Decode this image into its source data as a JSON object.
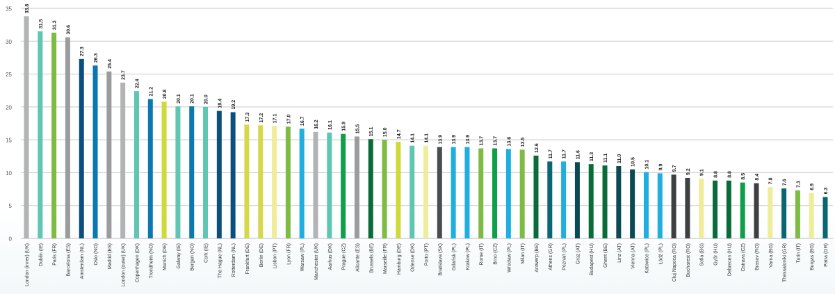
{
  "chart_data": {
    "type": "bar",
    "title": "",
    "xlabel": "",
    "ylabel": "",
    "ylim": [
      0,
      35
    ],
    "yticks": [
      0,
      5,
      10,
      15,
      20,
      25,
      30,
      35
    ],
    "grid": true,
    "legend": null,
    "categories": [
      "London (inner) (UK)",
      "Dublin (IE)",
      "Paris (FR)",
      "Barcelona (ES)",
      "Amsterdam (NL)",
      "Oslo (NO)",
      "Madrid (ES)",
      "London (outer) (UK)",
      "Copenhagen (DK)",
      "Trondheim (NO)",
      "Munich (DE)",
      "Galway (IE)",
      "Bergen (NO)",
      "Cork (IE)",
      "The Hague (NL)",
      "Rotterdam (NL)",
      "Frankfurt (DE)",
      "Berlin (DE)",
      "Lisbon (PT)",
      "Lyon (FR)",
      "Warsaw (PL)",
      "Manchester (UK)",
      "Aarhus (DK)",
      "Prague (CZ)",
      "Alicante (ES)",
      "Brussels (BE)",
      "Marseille (FR)",
      "Hamburg (DE)",
      "Odense (DK)",
      "Porto (PT)",
      "Bratislava (SK)",
      "Gdańsk (PL)",
      "Krakow (PL)",
      "Rome (IT)",
      "Brno (CZ)",
      "Wrocław (PL)",
      "Milan (IT)",
      "Antwerp (BE)",
      "Athens (GR)",
      "Poznań (PL)",
      "Graz (AT)",
      "Budapest (HU)",
      "Ghent (BE)",
      "Linz (AT)",
      "Vienna (AT)",
      "Katowice (PL)",
      "Łódź (PL)",
      "Cluj Napoca (RO)",
      "Bucharest (RO)",
      "Sofia (BG)",
      "Győr (HU)",
      "Debrecen (HU)",
      "Ostrava (CZ)",
      "Brasov (RO)",
      "Varna (BG)",
      "Thessaloniki (GR)",
      "Turin (IT)",
      "Burgas (BG)",
      "Patra (GR)"
    ],
    "values": [
      33.8,
      31.5,
      31.3,
      30.6,
      27.3,
      26.3,
      25.4,
      23.7,
      22.4,
      21.2,
      20.8,
      20.1,
      20.1,
      20.0,
      19.4,
      19.2,
      17.3,
      17.2,
      17.1,
      17.0,
      16.7,
      16.2,
      16.1,
      15.9,
      15.5,
      15.1,
      15.0,
      14.7,
      14.1,
      14.1,
      13.9,
      13.9,
      13.9,
      13.7,
      13.7,
      13.6,
      13.5,
      12.6,
      11.7,
      11.7,
      11.6,
      11.3,
      11.1,
      11.0,
      10.5,
      10.1,
      9.9,
      9.7,
      9.2,
      9.1,
      8.8,
      8.8,
      8.5,
      8.4,
      7.8,
      7.6,
      7.3,
      6.9,
      6.3
    ],
    "value_labels": [
      "33.8",
      "31.5",
      "31.3",
      "30.6",
      "27.3",
      "26.3",
      "25.4",
      "23.7",
      "22.4",
      "21.2",
      "20.8",
      "20.1",
      "20.1",
      "20.0",
      "19.4",
      "19.2",
      "17.3",
      "17.2",
      "17.1",
      "17.0",
      "16.7",
      "16.2",
      "16.1",
      "15.9",
      "15.5",
      "15.1",
      "15.0",
      "14.7",
      "14.1",
      "14.1",
      "13.9",
      "13.9",
      "13.9",
      "13.7",
      "13.7",
      "13.6",
      "13.5",
      "12.6",
      "11.7",
      "11.7",
      "11.6",
      "11.3",
      "11.1",
      "11.0",
      "10.5",
      "10.1",
      "9.9",
      "9.7",
      "9.2",
      "9.1",
      "8.8",
      "8.8",
      "8.5",
      "8.4",
      "7.8",
      "7.6",
      "7.3",
      "6.9",
      "6.3"
    ],
    "colors": [
      "#b1b3b4",
      "#5ec6b2",
      "#7dbb42",
      "#9a9c9e",
      "#0b4f7c",
      "#0b78b0",
      "#9a9c9e",
      "#b1b3b4",
      "#5ec6b2",
      "#0b78b0",
      "#cfd93a",
      "#5ec6b2",
      "#0b78b0",
      "#5ec6b2",
      "#0b4f7c",
      "#0b4f7c",
      "#d5d84a",
      "#d5d84a",
      "#efec9a",
      "#7dbb42",
      "#1eaee0",
      "#b1b3b4",
      "#5ec6b2",
      "#0e9f4a",
      "#9a9c9e",
      "#0a6b3a",
      "#7dbb42",
      "#cfd93a",
      "#5ec6b2",
      "#efec9a",
      "#4a4d4f",
      "#1eaee0",
      "#1eaee0",
      "#7dbb42",
      "#0e9f4a",
      "#1eaee0",
      "#7dbb42",
      "#0a6b3a",
      "#0a6670",
      "#1eaee0",
      "#0b4a52",
      "#0a6b3a",
      "#0a6b3a",
      "#0b4a52",
      "#0b4a52",
      "#1eaee0",
      "#1eaee0",
      "#3d3f41",
      "#3d3f41",
      "#efec9a",
      "#0a6b3a",
      "#0a6b3a",
      "#0e9f4a",
      "#3d3f41",
      "#efec9a",
      "#0a6670",
      "#7dbb42",
      "#efec9a",
      "#0a6670"
    ]
  },
  "axis": {
    "tick_color": "#555555",
    "grid_color": "#c8cacb",
    "label_color": "#333333",
    "value_label_color": "#222222"
  }
}
